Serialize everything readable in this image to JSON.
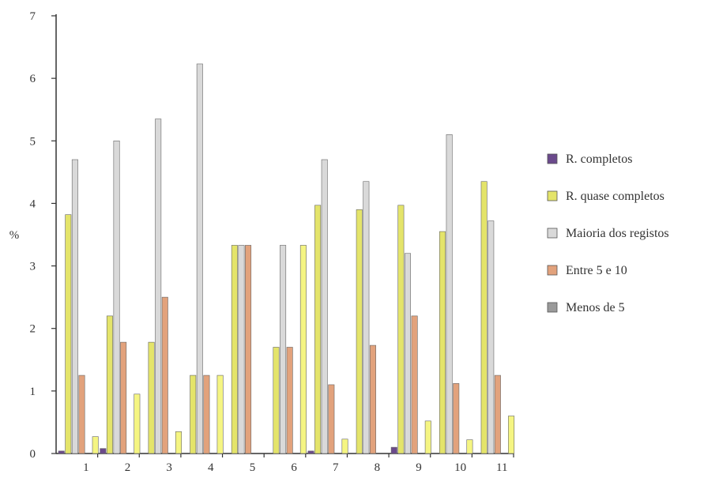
{
  "chart_data": {
    "type": "bar",
    "title": "",
    "xlabel": "",
    "ylabel": "%",
    "ylim": [
      0,
      7
    ],
    "yticks": [
      "0",
      "1",
      "2",
      "3",
      "4",
      "5",
      "6",
      "7"
    ],
    "categories": [
      "1",
      "2",
      "3",
      "4",
      "5",
      "6",
      "7",
      "8",
      "9",
      "10",
      "11"
    ],
    "legend_position": "right",
    "grid": false,
    "series": [
      {
        "name": "R. completos",
        "color": "#6b4a8c",
        "values": [
          0.04,
          0.08,
          0,
          0,
          0,
          0,
          0.04,
          0,
          0.1,
          0,
          0
        ]
      },
      {
        "name": "R. quase completos",
        "color": "#e4e46a",
        "values": [
          3.82,
          2.2,
          1.78,
          1.25,
          3.33,
          1.7,
          3.97,
          3.9,
          3.97,
          3.55,
          4.35
        ]
      },
      {
        "name": "Maioria dos registos",
        "color": "#d9d9d9",
        "values": [
          4.7,
          5.0,
          5.35,
          6.23,
          3.33,
          3.33,
          4.7,
          4.35,
          3.2,
          5.1,
          3.72
        ]
      },
      {
        "name": "Entre 5 e 10",
        "color": "#e2a27c",
        "values": [
          1.25,
          1.78,
          2.5,
          1.25,
          3.33,
          1.7,
          1.1,
          1.73,
          2.2,
          1.12,
          1.25
        ]
      },
      {
        "name": "Menos de 5",
        "color": "#9a9a9a",
        "values": [
          0,
          0,
          0,
          0,
          0,
          0,
          0,
          0,
          0,
          0,
          0
        ]
      },
      {
        "name": "",
        "color": "#f5f582",
        "values": [
          0.27,
          0.95,
          0.35,
          1.25,
          0,
          3.33,
          0.23,
          0,
          0.52,
          0.22,
          0.6
        ]
      }
    ]
  }
}
